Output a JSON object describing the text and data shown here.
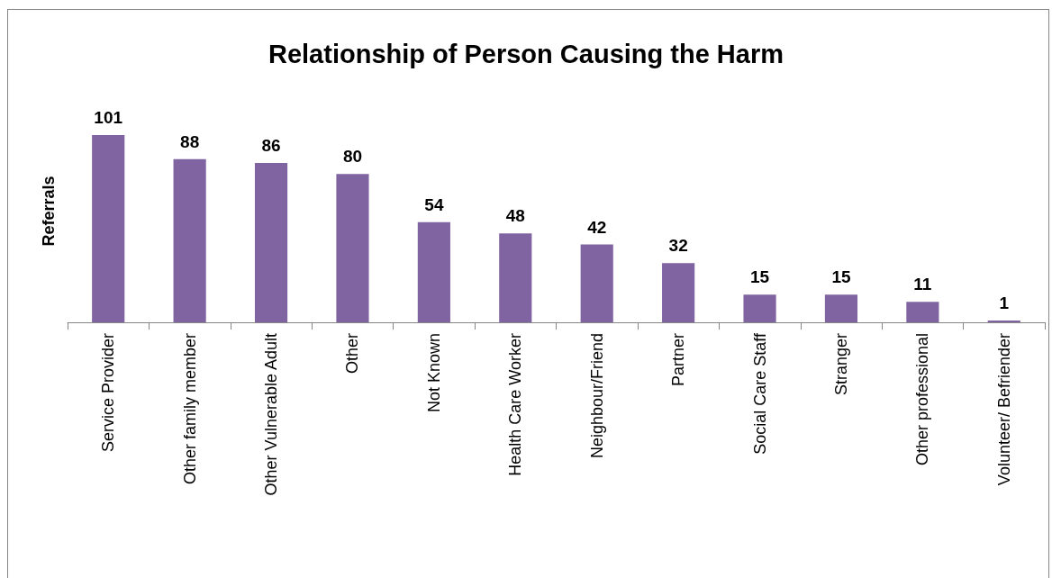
{
  "chart_data": {
    "type": "bar",
    "title": "Relationship of Person Causing the Harm",
    "ylabel": "Referrals",
    "categories": [
      "Service Provider",
      "Other family member",
      "Other Vulnerable Adult",
      "Other",
      "Not Known",
      "Health Care Worker",
      "Neighbour/Friend",
      "Partner",
      "Social Care Staff",
      "Stranger",
      "Other professional",
      "Volunteer/ Befriender"
    ],
    "values": [
      101,
      88,
      86,
      80,
      54,
      48,
      42,
      32,
      15,
      15,
      11,
      1
    ],
    "color": "#8064a2",
    "data_labels": true
  }
}
